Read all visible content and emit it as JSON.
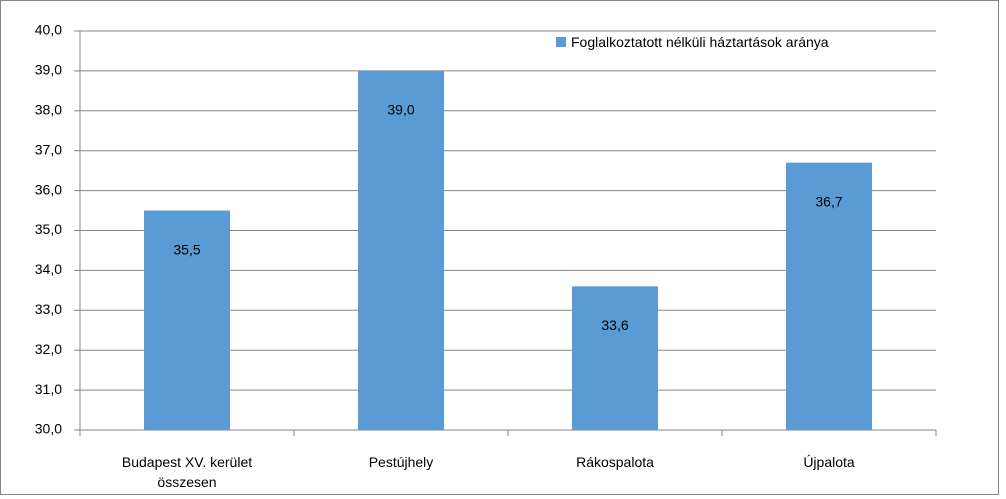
{
  "chart_data": {
    "type": "bar",
    "categories": [
      "Budapest XV. kerület összesen",
      "Pestújhely",
      "Rákospalota",
      "Újpalota"
    ],
    "series": [
      {
        "name": "Foglalkoztatott  nélküli háztartások aránya",
        "color": "#5b9bd5",
        "values": [
          35.5,
          39.0,
          33.6,
          36.7
        ],
        "value_labels": [
          "35,5",
          "39,0",
          "33,6",
          "36,7"
        ]
      }
    ],
    "ylim": [
      30,
      40
    ],
    "yticks": [
      {
        "value": 30,
        "label": "30,0"
      },
      {
        "value": 31,
        "label": "31,0"
      },
      {
        "value": 32,
        "label": "32,0"
      },
      {
        "value": 33,
        "label": "33,0"
      },
      {
        "value": 34,
        "label": "34,0"
      },
      {
        "value": 35,
        "label": "35,0"
      },
      {
        "value": 36,
        "label": "36,0"
      },
      {
        "value": 37,
        "label": "37,0"
      },
      {
        "value": 38,
        "label": "38,0"
      },
      {
        "value": 39,
        "label": "39,0"
      },
      {
        "value": 40,
        "label": "40,0"
      }
    ],
    "grid": true,
    "legend": "top-right"
  }
}
